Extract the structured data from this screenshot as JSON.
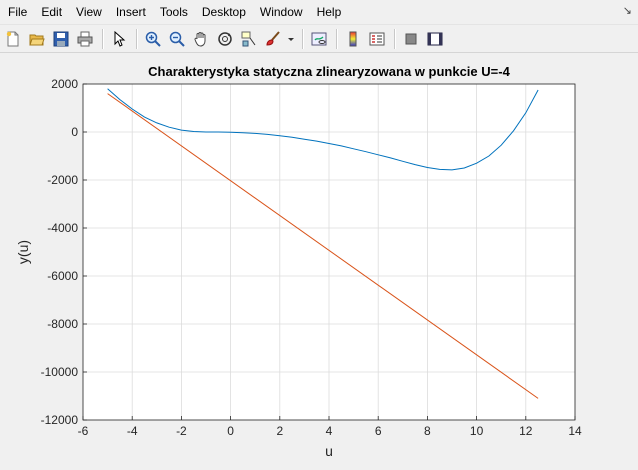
{
  "menu": {
    "items": [
      "File",
      "Edit",
      "View",
      "Insert",
      "Tools",
      "Desktop",
      "Window",
      "Help"
    ],
    "dock_arrow": "↘"
  },
  "toolbar": {
    "buttons": [
      "new-figure-icon",
      "open-file-icon",
      "save-icon",
      "print-icon",
      "select-arrow-icon",
      "zoom-in-icon",
      "zoom-out-icon",
      "pan-hand-icon",
      "rotate-3d-icon",
      "data-cursor-icon",
      "brush-icon",
      "link-plot-icon",
      "colorbar-icon",
      "legend-icon",
      "hide-plot-tools-icon",
      "show-plot-tools-icon"
    ]
  },
  "chart_data": {
    "type": "line",
    "title": "Charakterystyka statyczna zlinearyzowana w punkcie U=-4",
    "xlabel": "u",
    "ylabel": "y(u)",
    "xlim": [
      -6,
      14
    ],
    "ylim": [
      -12000,
      2000
    ],
    "xticks": [
      -6,
      -4,
      -2,
      0,
      2,
      4,
      6,
      8,
      10,
      12,
      14
    ],
    "yticks": [
      -12000,
      -10000,
      -8000,
      -6000,
      -4000,
      -2000,
      0,
      2000
    ],
    "grid": true,
    "series": [
      {
        "color": "#0072bd",
        "x": [
          -5,
          -4.5,
          -4,
          -3.5,
          -3,
          -2.5,
          -2,
          -1.5,
          -1,
          -0.5,
          0,
          0.5,
          1,
          1.5,
          2,
          2.5,
          3,
          3.5,
          4,
          4.5,
          5,
          5.5,
          6,
          6.5,
          7,
          7.5,
          8,
          8.5,
          9,
          9.5,
          10,
          10.5,
          11,
          11.5,
          12,
          12.5
        ],
        "y": [
          1800,
          1350,
          960,
          620,
          380,
          200,
          80,
          20,
          0,
          0,
          -10,
          -30,
          -60,
          -100,
          -160,
          -220,
          -300,
          -380,
          -480,
          -580,
          -700,
          -820,
          -950,
          -1080,
          -1220,
          -1360,
          -1480,
          -1560,
          -1580,
          -1500,
          -1300,
          -1000,
          -550,
          50,
          800,
          1750
        ]
      },
      {
        "color": "#d95319",
        "x": [
          -5,
          12.5
        ],
        "y": [
          1600,
          -11100
        ]
      }
    ]
  }
}
